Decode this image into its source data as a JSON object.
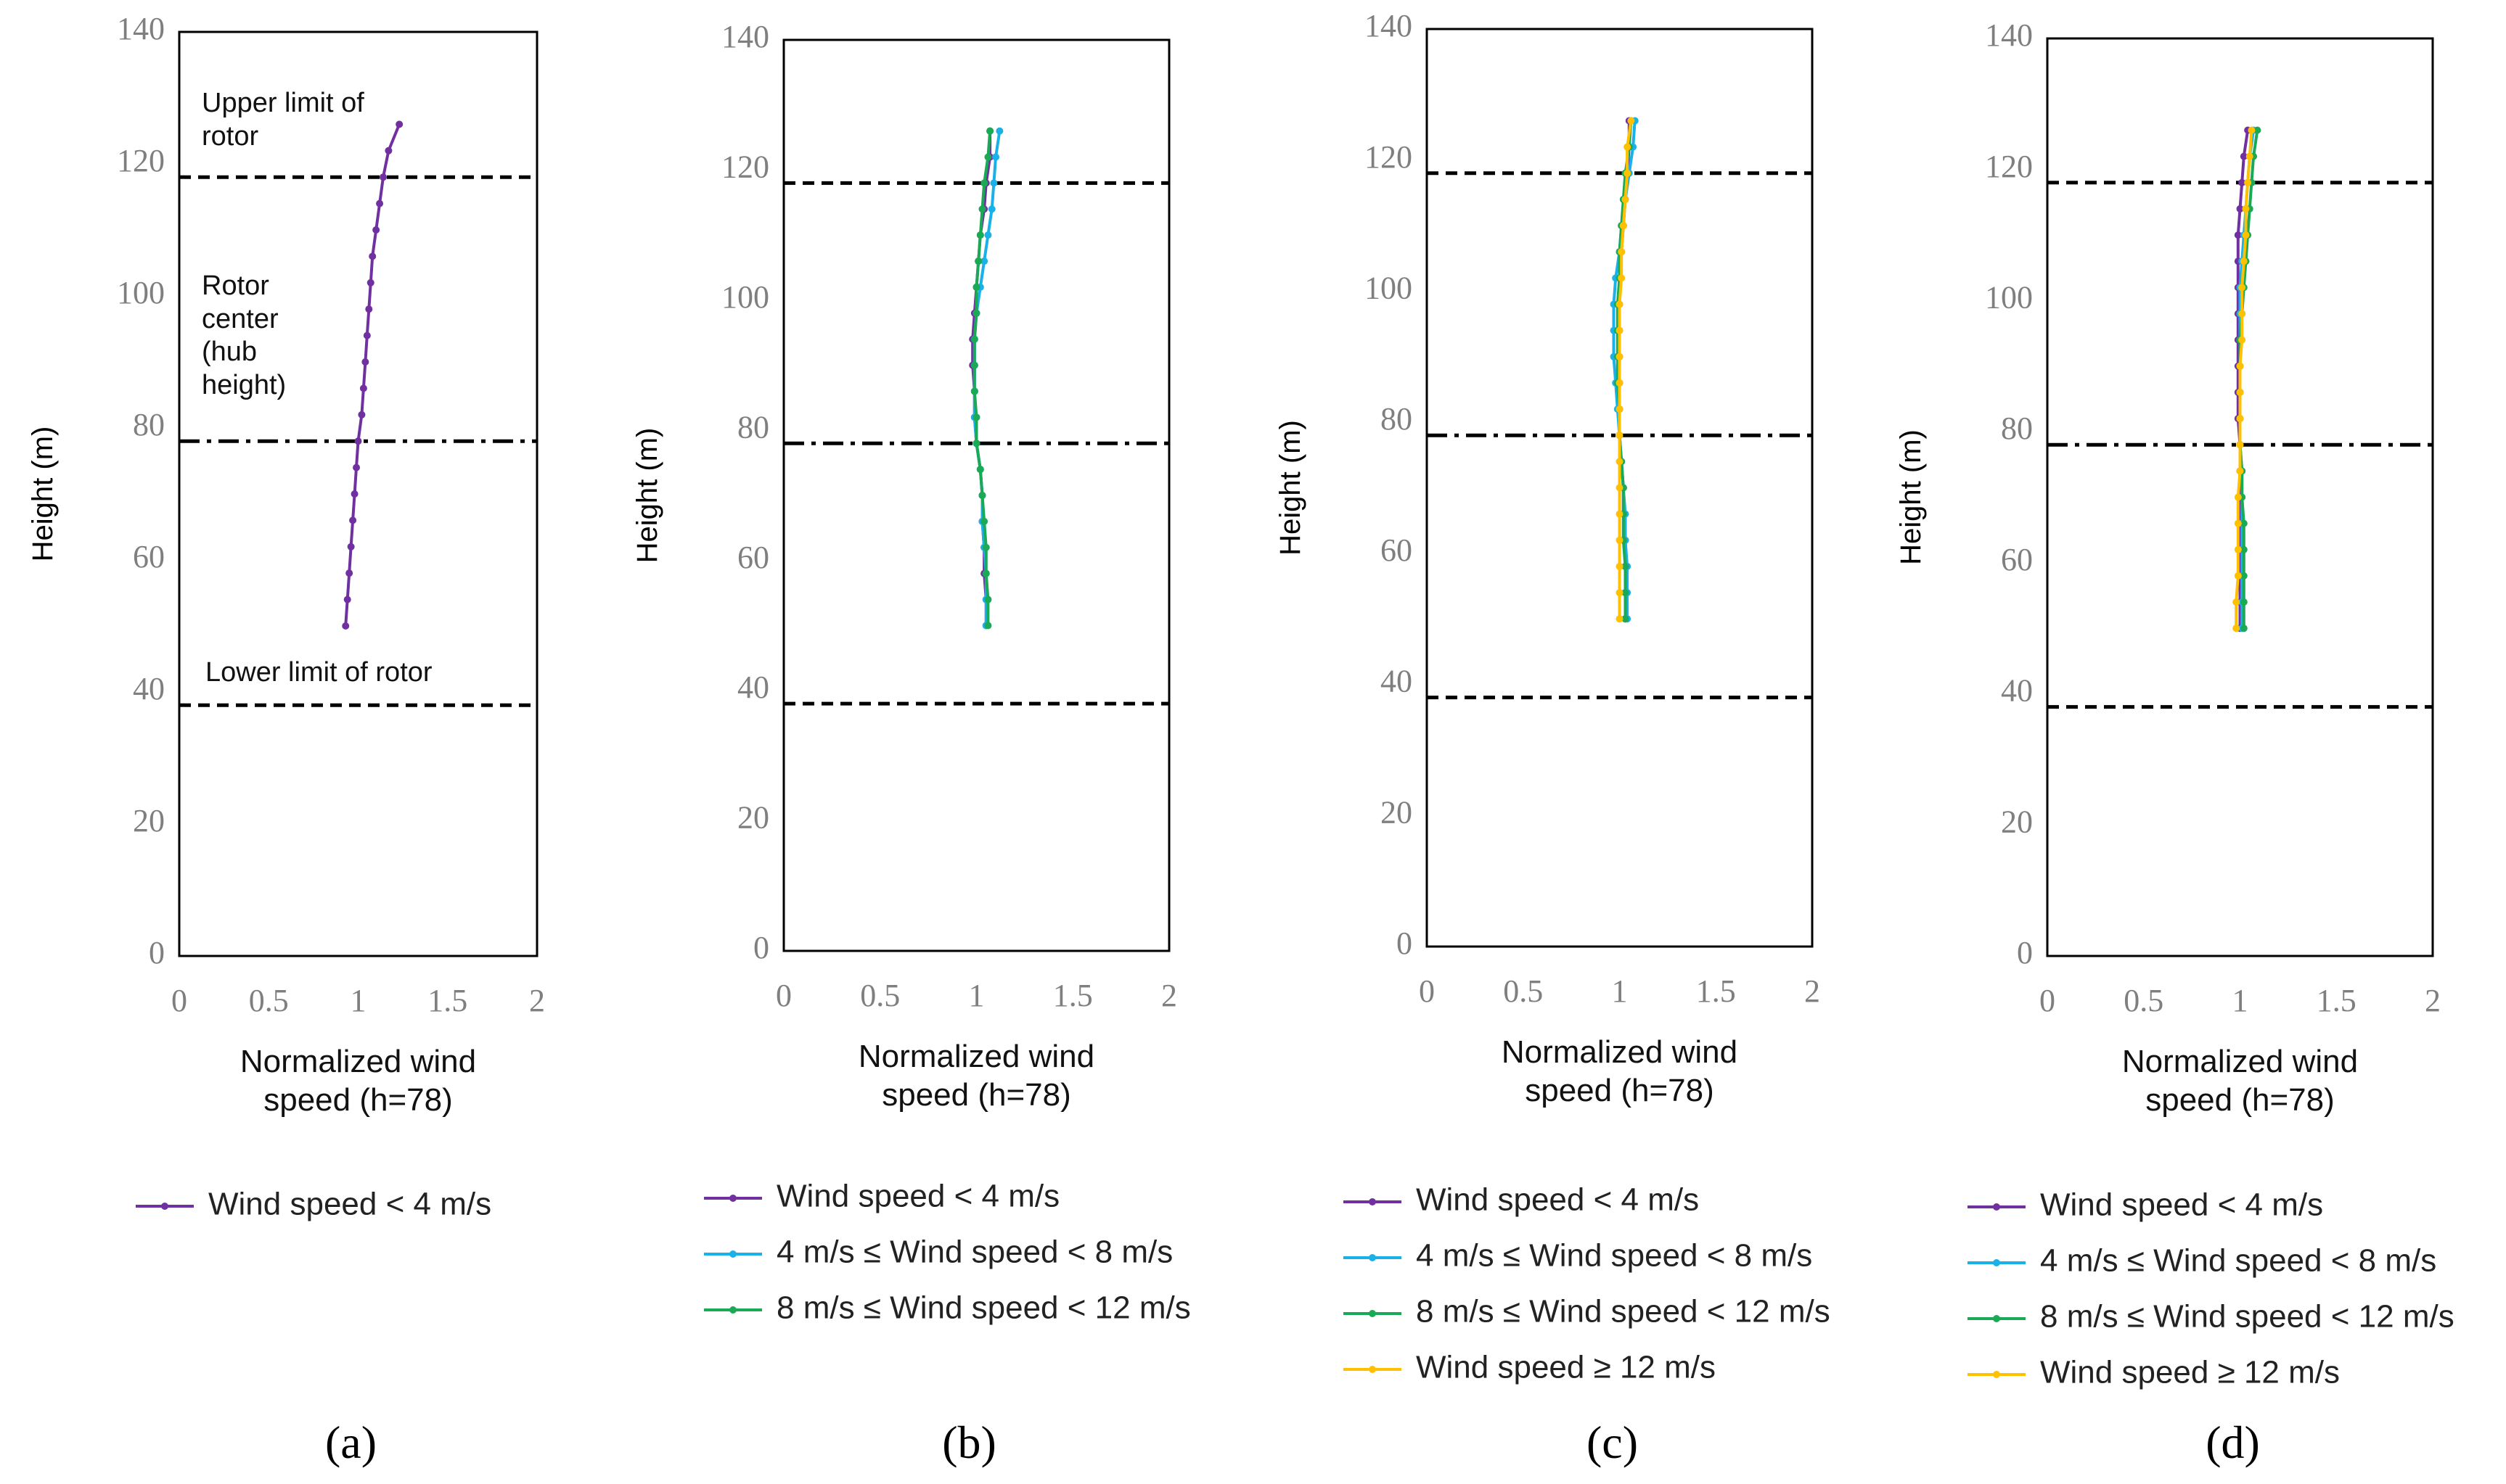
{
  "chart_data": [
    {
      "type": "line",
      "label": "(a)",
      "xlabel": "Normalized wind speed (h=78)",
      "ylabel": "Height (m)",
      "xlim": [
        0,
        2
      ],
      "xticks": [
        0,
        0.5,
        1,
        1.5,
        2
      ],
      "ylim": [
        0,
        140
      ],
      "yticks": [
        0,
        20,
        40,
        60,
        80,
        100,
        120,
        140
      ],
      "y": [
        50,
        54,
        58,
        62,
        66,
        70,
        74,
        78,
        82,
        86,
        90,
        94,
        98,
        102,
        106,
        110,
        114,
        118,
        122,
        126
      ],
      "series": [
        {
          "name": "Wind speed < 4 m/s",
          "color": "#7030a0",
          "values": [
            0.93,
            0.94,
            0.95,
            0.96,
            0.97,
            0.98,
            0.99,
            1.0,
            1.02,
            1.03,
            1.04,
            1.05,
            1.06,
            1.07,
            1.08,
            1.1,
            1.12,
            1.14,
            1.17,
            1.23
          ]
        }
      ],
      "reference_lines": [
        {
          "y": 118,
          "style": "dashed"
        },
        {
          "y": 78,
          "style": "dashdot"
        },
        {
          "y": 38,
          "style": "dashed"
        }
      ],
      "annotations": [
        "Upper limit of rotor",
        "Rotor center (hub height)",
        "Lower limit of rotor"
      ]
    },
    {
      "type": "line",
      "label": "(b)",
      "xlabel": "Normalized wind speed (h=78)",
      "ylabel": "Height (m)",
      "xlim": [
        0,
        2
      ],
      "xticks": [
        0,
        0.5,
        1,
        1.5,
        2
      ],
      "ylim": [
        0,
        140
      ],
      "yticks": [
        0,
        20,
        40,
        60,
        80,
        100,
        120,
        140
      ],
      "y": [
        50,
        54,
        58,
        62,
        66,
        70,
        74,
        78,
        82,
        86,
        90,
        94,
        98,
        102,
        106,
        110,
        114,
        118,
        122,
        126
      ],
      "series": [
        {
          "name": "Wind speed < 4 m/s",
          "color": "#7030a0",
          "values": [
            1.05,
            1.05,
            1.04,
            1.04,
            1.03,
            1.03,
            1.02,
            1.0,
            0.99,
            0.99,
            0.98,
            0.98,
            0.99,
            1.0,
            1.01,
            1.02,
            1.04,
            1.05,
            1.07,
            1.07
          ]
        },
        {
          "name": "4 m/s ≤ Wind speed < 8 m/s",
          "color": "#1ab0e8",
          "values": [
            1.05,
            1.05,
            1.05,
            1.04,
            1.03,
            1.03,
            1.02,
            1.0,
            0.99,
            0.99,
            0.99,
            0.99,
            1.0,
            1.02,
            1.04,
            1.06,
            1.08,
            1.09,
            1.1,
            1.12
          ]
        },
        {
          "name": "8 m/s ≤ Wind speed < 12 m/s",
          "color": "#1aaa55",
          "values": [
            1.06,
            1.06,
            1.05,
            1.05,
            1.04,
            1.03,
            1.02,
            1.0,
            1.0,
            0.99,
            0.99,
            0.99,
            1.0,
            1.0,
            1.01,
            1.02,
            1.03,
            1.04,
            1.06,
            1.07
          ]
        }
      ],
      "reference_lines": [
        {
          "y": 118,
          "style": "dashed"
        },
        {
          "y": 78,
          "style": "dashdot"
        },
        {
          "y": 38,
          "style": "dashed"
        }
      ]
    },
    {
      "type": "line",
      "label": "(c)",
      "xlabel": "Normalized wind speed (h=78)",
      "ylabel": "Height (m)",
      "xlim": [
        0,
        2
      ],
      "xticks": [
        0,
        0.5,
        1,
        1.5,
        2
      ],
      "ylim": [
        0,
        140
      ],
      "yticks": [
        0,
        20,
        40,
        60,
        80,
        100,
        120,
        140
      ],
      "y": [
        50,
        54,
        58,
        62,
        66,
        70,
        74,
        78,
        82,
        86,
        90,
        94,
        98,
        102,
        106,
        110,
        114,
        118,
        122,
        126
      ],
      "series": [
        {
          "name": "Wind speed < 4 m/s",
          "color": "#7030a0",
          "values": [
            1.03,
            1.03,
            1.03,
            1.03,
            1.02,
            1.02,
            1.01,
            1.0,
            1.0,
            1.0,
            1.0,
            1.0,
            1.0,
            1.0,
            1.01,
            1.02,
            1.03,
            1.04,
            1.05,
            1.05
          ]
        },
        {
          "name": "4 m/s ≤ Wind speed < 8 m/s",
          "color": "#1ab0e8",
          "values": [
            1.04,
            1.04,
            1.04,
            1.03,
            1.03,
            1.02,
            1.01,
            1.0,
            0.99,
            0.98,
            0.97,
            0.97,
            0.97,
            0.98,
            1.0,
            1.01,
            1.03,
            1.05,
            1.07,
            1.08
          ]
        },
        {
          "name": "8 m/s ≤ Wind speed < 12 m/s",
          "color": "#1aaa55",
          "values": [
            1.03,
            1.03,
            1.03,
            1.02,
            1.02,
            1.02,
            1.01,
            1.0,
            1.0,
            0.99,
            0.99,
            0.99,
            0.99,
            1.0,
            1.0,
            1.01,
            1.02,
            1.03,
            1.05,
            1.06
          ]
        },
        {
          "name": "Wind speed ≥ 12 m/s",
          "color": "#ffc000",
          "values": [
            1.0,
            1.0,
            1.0,
            1.0,
            1.0,
            1.0,
            1.0,
            1.0,
            1.0,
            1.0,
            1.0,
            1.0,
            1.0,
            1.01,
            1.01,
            1.02,
            1.03,
            1.04,
            1.04,
            1.06
          ]
        }
      ],
      "reference_lines": [
        {
          "y": 118,
          "style": "dashed"
        },
        {
          "y": 78,
          "style": "dashdot"
        },
        {
          "y": 38,
          "style": "dashed"
        }
      ]
    },
    {
      "type": "line",
      "label": "(d)",
      "xlabel": "Normalized wind speed (h=78)",
      "ylabel": "Height (m)",
      "xlim": [
        0,
        2
      ],
      "xticks": [
        0,
        0.5,
        1,
        1.5,
        2
      ],
      "ylim": [
        0,
        140
      ],
      "yticks": [
        0,
        20,
        40,
        60,
        80,
        100,
        120,
        140
      ],
      "y": [
        50,
        54,
        58,
        62,
        66,
        70,
        74,
        78,
        82,
        86,
        90,
        94,
        98,
        102,
        106,
        110,
        114,
        118,
        122,
        126
      ],
      "series": [
        {
          "name": "Wind speed < 4 m/s",
          "color": "#7030a0",
          "values": [
            1.0,
            1.0,
            1.0,
            1.0,
            1.0,
            1.0,
            1.0,
            1.0,
            0.99,
            0.99,
            0.99,
            0.99,
            0.99,
            0.99,
            0.99,
            0.99,
            1.0,
            1.01,
            1.02,
            1.04
          ]
        },
        {
          "name": "4 m/s ≤ Wind speed < 8 m/s",
          "color": "#1ab0e8",
          "values": [
            1.01,
            1.01,
            1.01,
            1.01,
            1.01,
            1.01,
            1.01,
            1.0,
            1.0,
            1.0,
            1.0,
            1.0,
            1.0,
            1.0,
            1.01,
            1.02,
            1.03,
            1.04,
            1.05,
            1.07
          ]
        },
        {
          "name": "8 m/s ≤ Wind speed < 12 m/s",
          "color": "#1aaa55",
          "values": [
            1.02,
            1.02,
            1.02,
            1.02,
            1.02,
            1.01,
            1.01,
            1.0,
            1.0,
            1.0,
            1.0,
            1.0,
            1.01,
            1.02,
            1.03,
            1.04,
            1.05,
            1.06,
            1.07,
            1.09
          ]
        },
        {
          "name": "Wind speed ≥ 12 m/s",
          "color": "#ffc000",
          "values": [
            0.98,
            0.98,
            0.99,
            0.99,
            0.99,
            0.99,
            1.0,
            1.0,
            1.0,
            1.0,
            1.0,
            1.01,
            1.01,
            1.01,
            1.02,
            1.03,
            1.03,
            1.04,
            1.05,
            1.06
          ]
        }
      ],
      "reference_lines": [
        {
          "y": 118,
          "style": "dashed"
        },
        {
          "y": 78,
          "style": "dashdot"
        },
        {
          "y": 38,
          "style": "dashed"
        }
      ]
    }
  ]
}
